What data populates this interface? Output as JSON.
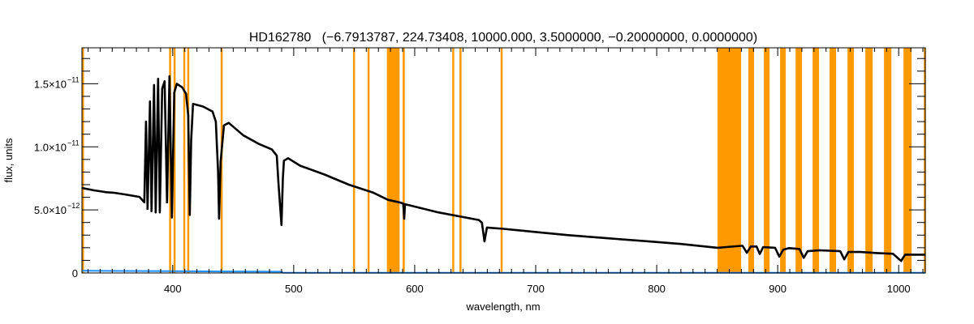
{
  "chart_data": {
    "type": "line",
    "title": "HD162780   (−6.7913787, 224.73408, 10000.000, 3.5000000, −0.20000000, 0.0000000)",
    "xlabel": "wavelength, nm",
    "ylabel": "flux, units",
    "xlim": [
      325,
      1022
    ],
    "ylim": [
      0,
      1.785e-11
    ],
    "x_ticks": [
      400,
      500,
      600,
      700,
      800,
      900,
      1000
    ],
    "x_tick_labels": [
      "400",
      "500",
      "600",
      "700",
      "800",
      "900",
      "1000"
    ],
    "y_ticks": [
      0,
      5e-12,
      1e-11,
      1.5e-11
    ],
    "y_tick_labels": [
      {
        "mantissa": "0",
        "exponent": ""
      },
      {
        "mantissa": "5.0×10",
        "exponent": "−12"
      },
      {
        "mantissa": "1.0×10",
        "exponent": "−11"
      },
      {
        "mantissa": "1.5×10",
        "exponent": "−11"
      }
    ],
    "y_unit_scale": 1e-12,
    "colors": {
      "spectrum": "#000000",
      "error": "#1e90ff",
      "mask": "#ff9900",
      "axes": "#000000"
    },
    "series": [
      {
        "name": "flux",
        "points": [
          [
            324.8,
            6.74
          ],
          [
            335,
            6.55
          ],
          [
            345,
            6.4
          ],
          [
            351,
            6.36
          ],
          [
            362,
            6.2
          ],
          [
            372.5,
            6.03
          ],
          [
            376.5,
            5.6
          ],
          [
            377.9,
            12.0
          ],
          [
            379.2,
            5.07
          ],
          [
            381.2,
            13.6
          ],
          [
            382.5,
            4.9
          ],
          [
            384.6,
            14.9
          ],
          [
            385.9,
            4.8
          ],
          [
            387.9,
            15.4
          ],
          [
            389.3,
            4.8
          ],
          [
            391.3,
            14.6
          ],
          [
            393.3,
            15.2
          ],
          [
            395.3,
            5.6
          ],
          [
            397.3,
            15.6
          ],
          [
            399.3,
            4.4
          ],
          [
            401.3,
            14.3
          ],
          [
            403.4,
            15.0
          ],
          [
            408,
            14.7
          ],
          [
            411,
            14.2
          ],
          [
            412.8,
            12.5
          ],
          [
            414.1,
            4.6
          ],
          [
            415.2,
            10.5
          ],
          [
            416.8,
            13.4
          ],
          [
            424.8,
            13.2
          ],
          [
            432.9,
            12.8
          ],
          [
            435.6,
            12.0
          ],
          [
            437.5,
            8.0
          ],
          [
            438.3,
            4.3
          ],
          [
            439.6,
            8.8
          ],
          [
            442.3,
            11.7
          ],
          [
            446.3,
            11.9
          ],
          [
            458.4,
            10.9
          ],
          [
            471.8,
            10.2
          ],
          [
            481.9,
            9.8
          ],
          [
            486,
            9.3
          ],
          [
            487.5,
            7.0
          ],
          [
            489.9,
            3.8
          ],
          [
            491,
            7.5
          ],
          [
            491.9,
            8.9
          ],
          [
            495.3,
            9.1
          ],
          [
            505.4,
            8.5
          ],
          [
            525.5,
            7.8
          ],
          [
            545.6,
            7.0
          ],
          [
            565.8,
            6.36
          ],
          [
            577.9,
            5.8
          ],
          [
            587.2,
            5.6
          ],
          [
            590.5,
            5.5
          ],
          [
            591.3,
            4.3
          ],
          [
            592,
            5.45
          ],
          [
            619.5,
            4.8
          ],
          [
            653,
            4.2
          ],
          [
            655.5,
            4.0
          ],
          [
            657.7,
            2.5
          ],
          [
            659.7,
            3.6
          ],
          [
            673.2,
            3.5
          ],
          [
            700,
            3.25
          ],
          [
            726.8,
            3.0
          ],
          [
            760,
            2.75
          ],
          [
            794,
            2.5
          ],
          [
            820,
            2.3
          ],
          [
            850.3,
            2.0
          ],
          [
            869.8,
            2.15
          ],
          [
            871,
            2.15
          ],
          [
            874.5,
            1.6
          ],
          [
            877.8,
            2.1
          ],
          [
            882.5,
            2.1
          ],
          [
            885.2,
            1.5
          ],
          [
            888,
            2.05
          ],
          [
            897.9,
            2.0
          ],
          [
            901.3,
            1.3
          ],
          [
            904.7,
            1.85
          ],
          [
            909.4,
            1.97
          ],
          [
            918.1,
            1.9
          ],
          [
            921.5,
            1.2
          ],
          [
            924.8,
            1.73
          ],
          [
            934.9,
            1.8
          ],
          [
            951.7,
            1.73
          ],
          [
            955,
            1.08
          ],
          [
            958.4,
            1.66
          ],
          [
            968.5,
            1.66
          ],
          [
            981.9,
            1.58
          ],
          [
            995.3,
            1.52
          ],
          [
            1002,
            0.95
          ],
          [
            1005.3,
            1.45
          ],
          [
            1022,
            1.45
          ]
        ]
      },
      {
        "name": "error",
        "points": [
          [
            324.8,
            0.18
          ],
          [
            360,
            0.16
          ],
          [
            400,
            0.14
          ],
          [
            440,
            0.12
          ],
          [
            490,
            0.1
          ],
          [
            491,
            0.02
          ],
          [
            1022,
            0.02
          ]
        ]
      }
    ],
    "masked_regions_nm": [
      [
        325,
        326.3
      ],
      [
        397,
        398.5
      ],
      [
        400.7,
        402
      ],
      [
        408.7,
        410
      ],
      [
        412,
        413.3
      ],
      [
        439.6,
        441
      ],
      [
        549,
        550.5
      ],
      [
        561,
        562.5
      ],
      [
        577,
        587.5
      ],
      [
        590,
        591.8
      ],
      [
        631,
        632.3
      ],
      [
        637,
        638.6
      ],
      [
        671,
        672.6
      ],
      [
        850.3,
        869.8
      ],
      [
        875.8,
        880.5
      ],
      [
        888.6,
        893.3
      ],
      [
        902,
        906.7
      ],
      [
        914.8,
        920.1
      ],
      [
        928.9,
        934.2
      ],
      [
        942.9,
        948.3
      ],
      [
        957.7,
        963
      ],
      [
        972.5,
        978.5
      ],
      [
        987.9,
        994
      ],
      [
        1004,
        1010.7
      ],
      [
        1020.8,
        1022
      ]
    ]
  }
}
